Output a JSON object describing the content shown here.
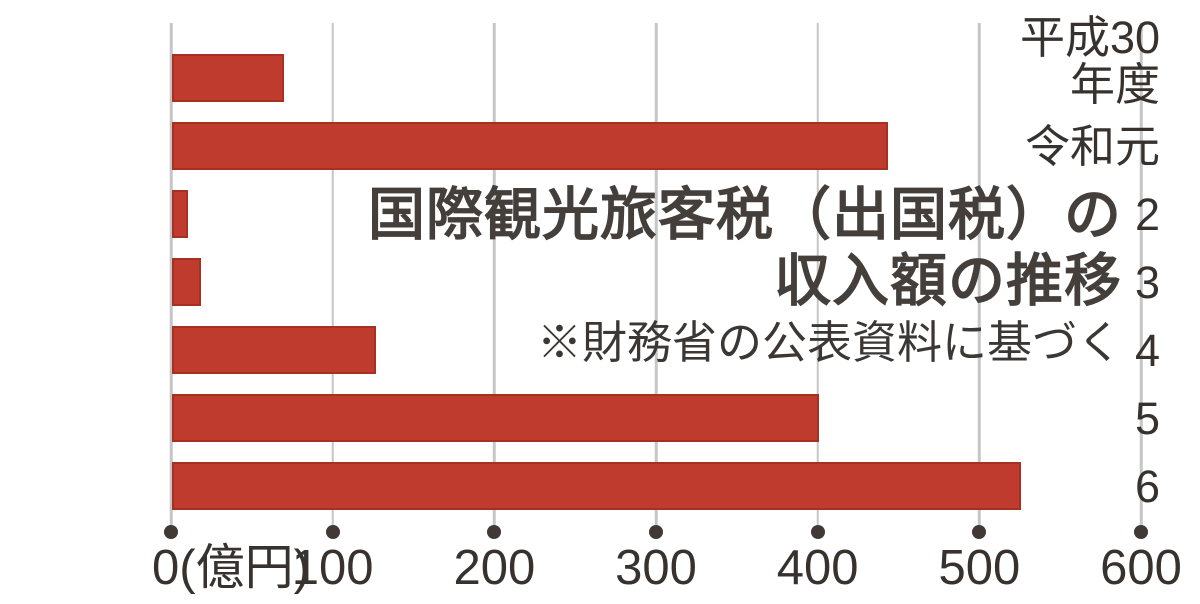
{
  "chart_data": {
    "type": "bar",
    "orientation": "horizontal",
    "title": "国際観光旅客税（出国税）の収入額の推移",
    "title_line1": "国際観光旅客税（出国税）の",
    "title_line2": "収入額の推移",
    "note": "※財務省の公表資料に基づく",
    "categories": [
      "平成30年度",
      "令和元",
      "2",
      "3",
      "4",
      "5",
      "6"
    ],
    "category_display_lines": [
      [
        "平成30",
        "年度"
      ],
      [
        "令和元"
      ],
      [
        "2"
      ],
      [
        "3"
      ],
      [
        "4"
      ],
      [
        "5"
      ],
      [
        "6"
      ]
    ],
    "values": [
      69,
      443,
      10,
      18,
      126,
      400,
      525
    ],
    "unit": "億円",
    "x_tick_values": [
      0,
      100,
      200,
      300,
      400,
      500,
      600
    ],
    "x_tick_labels": [
      "0(億円)",
      "100",
      "200",
      "300",
      "400",
      "500",
      "600"
    ],
    "xlim": [
      0,
      600
    ],
    "grid": true,
    "legend": false,
    "colors": {
      "bar_fill": "#bf3b2d",
      "bar_border": "#a63021",
      "gridline": "#c6c6c6",
      "axis_dot": "#423936",
      "label_text": "#38322f",
      "title_text": "#453f3c",
      "note_text": "#3b3734",
      "background": "#ffffff"
    }
  }
}
